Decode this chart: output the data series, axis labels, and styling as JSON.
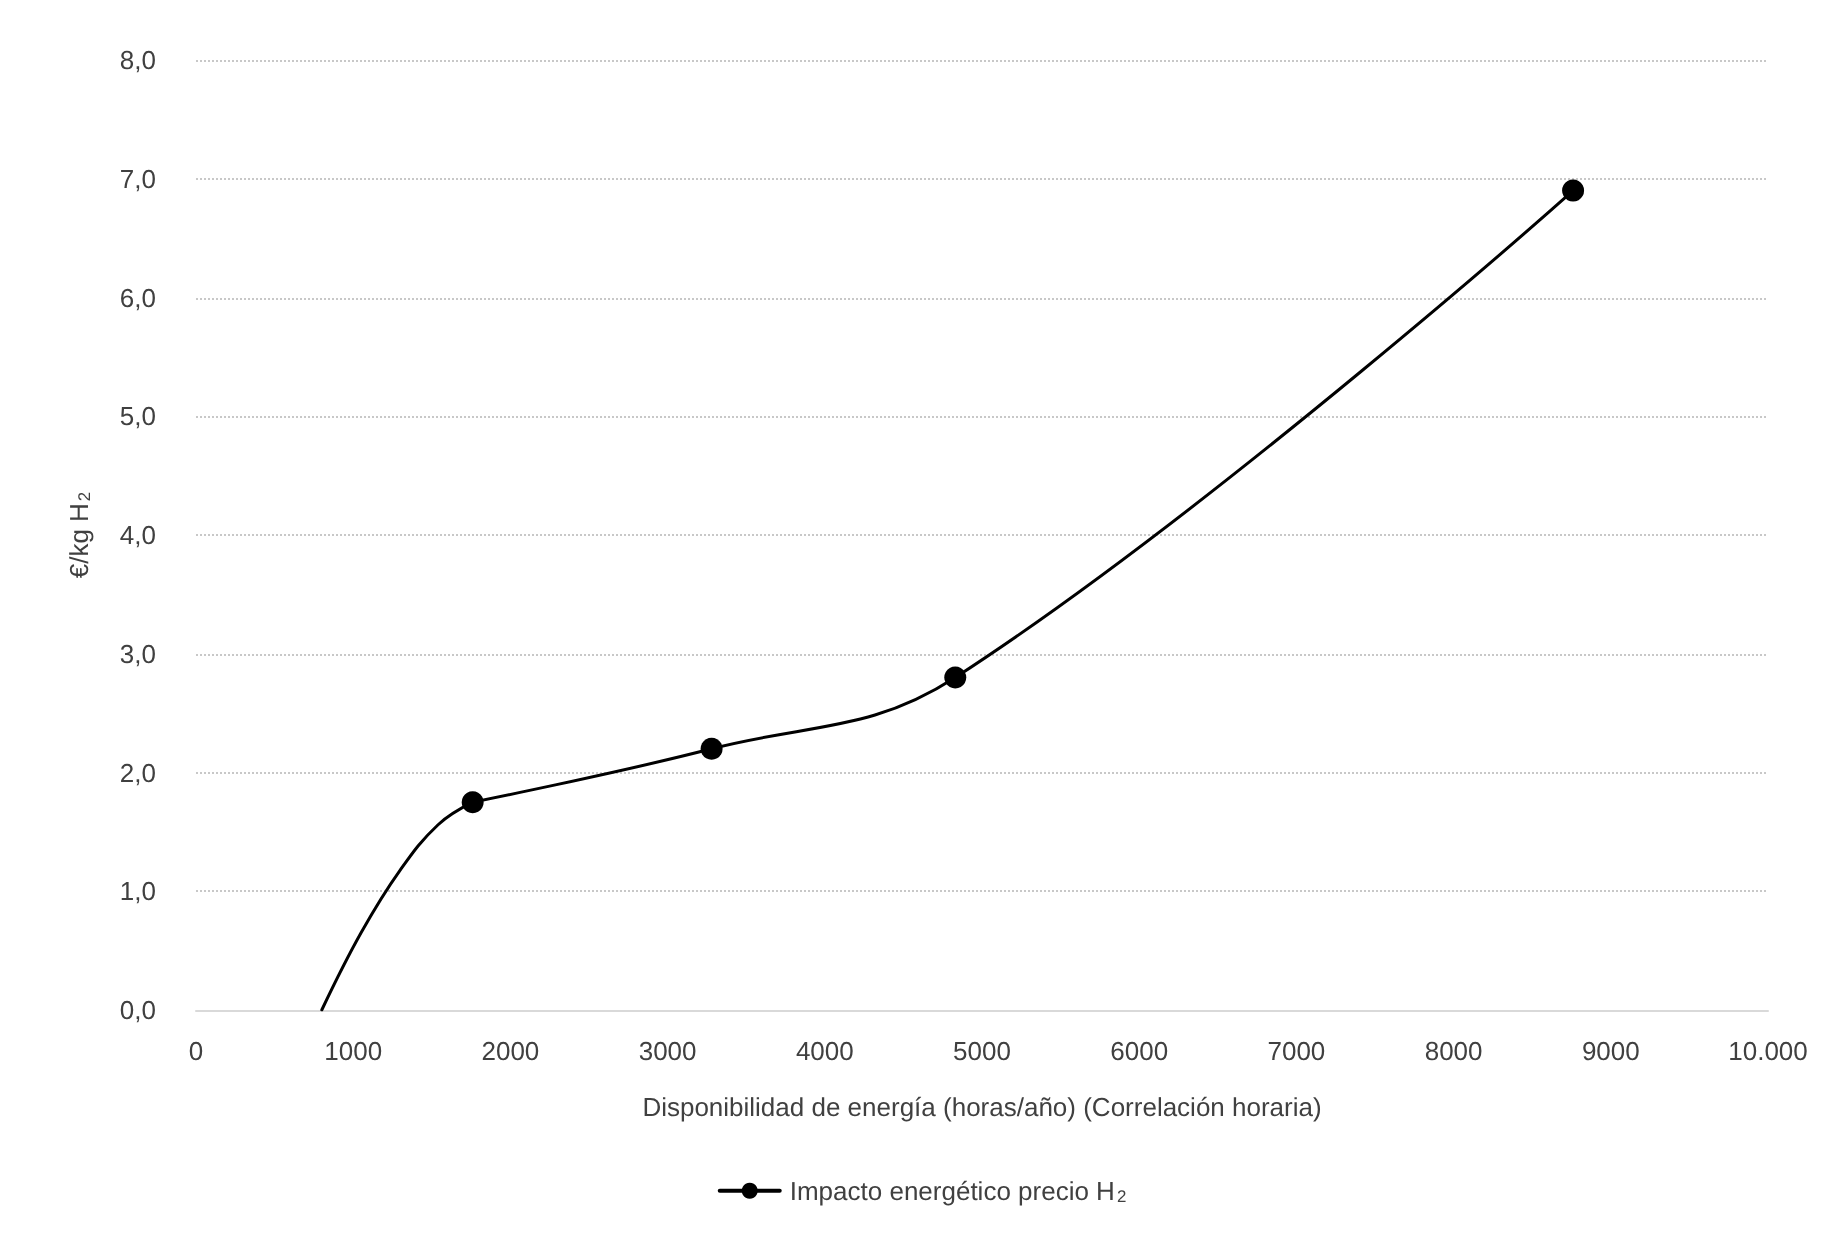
{
  "chart_data": {
    "type": "line",
    "xlabel": "Disponibilidad de energía (horas/año) (Correlación horaria)",
    "ylabel": "€/kg H$_{2}$",
    "xlim": [
      0,
      10000
    ],
    "xticks": [
      0,
      1000,
      2000,
      3000,
      4000,
      5000,
      6000,
      7000,
      8000,
      9000,
      {
        "value": 10000,
        "label": "10.000"
      }
    ],
    "ylim": [
      0,
      8
    ],
    "yticks": [
      {
        "value": 0,
        "label": "0,0"
      },
      {
        "value": 1,
        "label": "1,0"
      },
      {
        "value": 2,
        "label": "2,0"
      },
      {
        "value": 3,
        "label": "3,0"
      },
      {
        "value": 4,
        "label": "4,0"
      },
      {
        "value": 5,
        "label": "5,0"
      },
      {
        "value": 6,
        "label": "6,0"
      },
      {
        "value": 7,
        "label": "7,0"
      },
      {
        "value": 8,
        "label": "8,0"
      }
    ],
    "grid": "y",
    "legend": "bottom",
    "line_style": "solid",
    "series": [
      {
        "name": "Impacto energético precio H$_{2}$",
        "color": "#000000",
        "marker": "circle",
        "x": [
          1760,
          3280,
          4830,
          8760
        ],
        "values": [
          1.75,
          2.2,
          2.8,
          6.9
        ]
      },
      {
        "color": "#000000",
        "marker": "none",
        "x": [
          800,
          1050,
          1300,
          1540,
          1760
        ],
        "values": [
          0,
          0.65,
          1.18,
          1.56,
          1.75
        ]
      }
    ]
  }
}
